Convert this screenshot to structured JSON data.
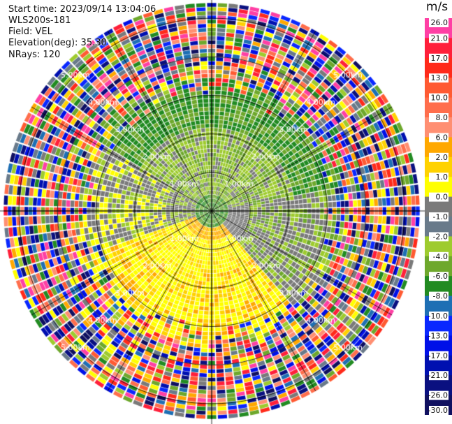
{
  "chart_data": {
    "type": "heatmap",
    "subtype": "radar-ppi",
    "info": {
      "start_time": "Start time: 2023/09/14 13:04:06",
      "instrument": "WLS200s-181",
      "field": "Field: VEL",
      "elevation": "Elevation(deg): 35.30",
      "nrays": "NRays: 120"
    },
    "colorbar": {
      "unit": "m/s",
      "levels": [
        26.0,
        21.0,
        17.0,
        13.0,
        10.0,
        8.0,
        6.0,
        2.0,
        1.0,
        0.0,
        -1.0,
        -2.0,
        -4.0,
        -6.0,
        -8.0,
        -10.0,
        -13.0,
        -17.0,
        -21.0,
        -26.0,
        -30.0
      ],
      "tick_labels": [
        "26.0",
        "21.0",
        "17.0",
        "13.0",
        "10.0",
        "8.0",
        "6.0",
        "2.0",
        "1.0",
        "0.0",
        "-1.0",
        "-2.0",
        "-4.0",
        "-6.0",
        "-8.0",
        "-10.0",
        "-13.0",
        "-17.0",
        "-21.0",
        "-26.0",
        "-30.0"
      ],
      "colors": [
        "#ff3fa4",
        "#ff1f3a",
        "#ff2a1a",
        "#ff5a32",
        "#ff6e4c",
        "#ff8f72",
        "#ffa800",
        "#ffd200",
        "#ffff00",
        "#7a7a7a",
        "#697a8a",
        "#9ecb2e",
        "#6ea82c",
        "#228b22",
        "#1e6fb4",
        "#0a28ff",
        "#0010e8",
        "#0010b0",
        "#0a1080",
        "#101060"
      ]
    },
    "range_rings": {
      "labels": [
        "1.00km",
        "2.00km",
        "3.00km",
        "4.00km",
        "5.00km"
      ]
    },
    "rays": 120,
    "gates": 50,
    "max_range_km": 5.4,
    "clean_range_km": 3.3,
    "regions": {
      "near_center": "gray/green mixed",
      "north": "green (-4 to -6 m/s)",
      "south": "yellow/orange (2 to 6 m/s)",
      "west": "gray (0 m/s)",
      "outer": "noise (random colors)"
    }
  }
}
